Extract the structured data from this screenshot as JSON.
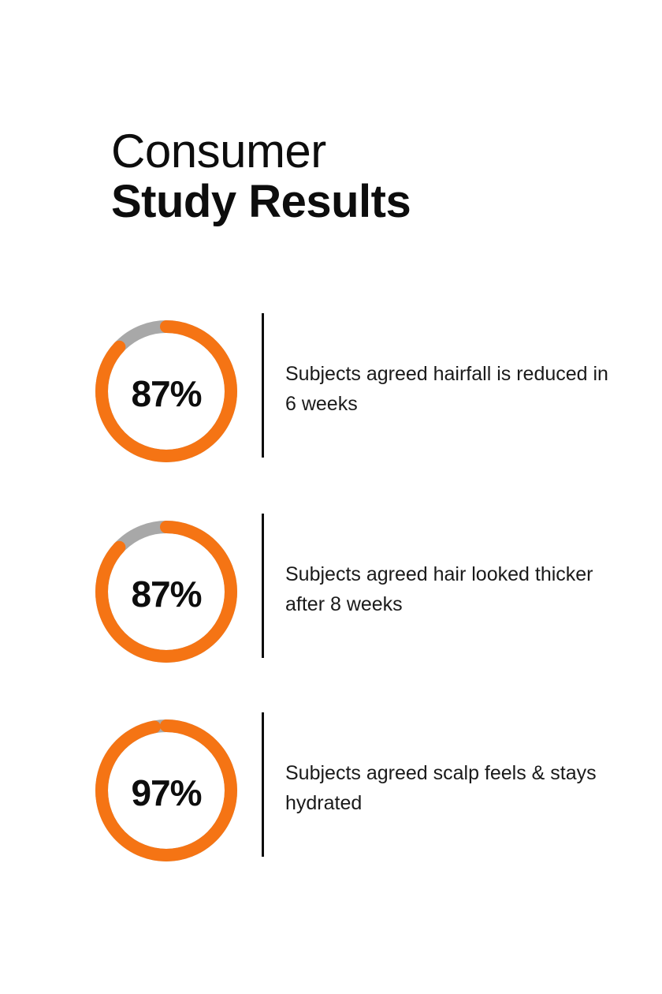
{
  "colors": {
    "accent": "#f57414",
    "track": "#a8a8a8",
    "text": "#0d0d0d"
  },
  "header": {
    "line1": "Consumer",
    "line2": "Study Results"
  },
  "stats": [
    {
      "value_label": "87%",
      "percent": 87,
      "text": "Subjects agreed hairfall is reduced in 6 weeks"
    },
    {
      "value_label": "87%",
      "percent": 87,
      "text": "Subjects agreed hair looked thicker after 8 weeks"
    },
    {
      "value_label": "97%",
      "percent": 97,
      "text": "Subjects agreed scalp feels & stays hydrated"
    }
  ]
}
